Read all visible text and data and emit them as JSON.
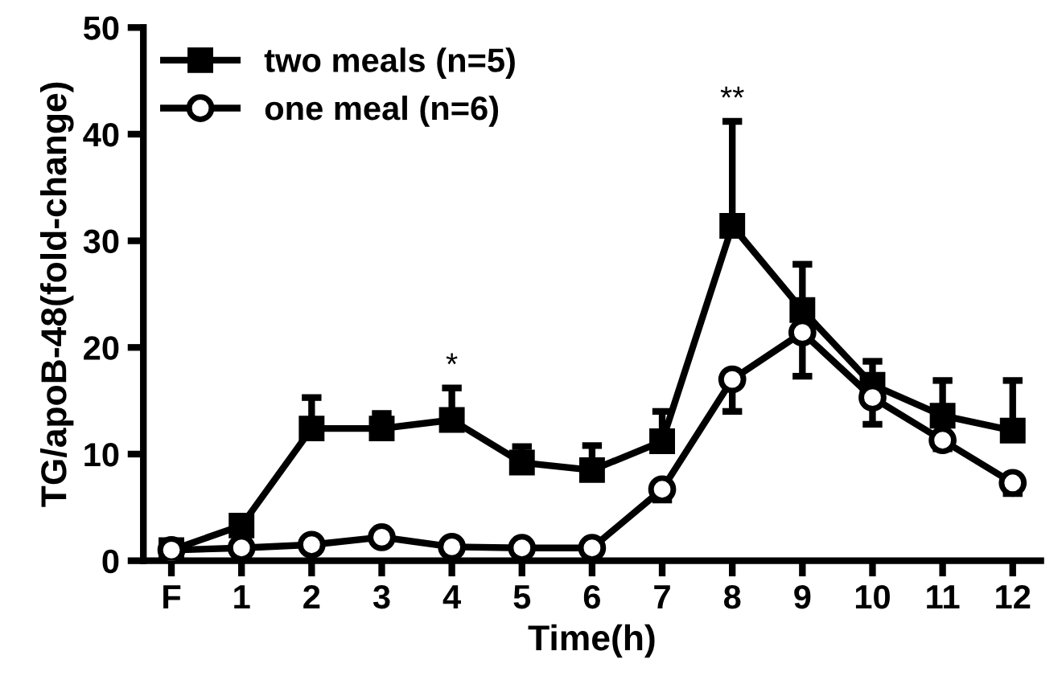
{
  "chart_data": {
    "type": "line",
    "xlabel": "Time(h)",
    "ylabel": "TG/apoB-48(fold-change)",
    "categories": [
      "F",
      "1",
      "2",
      "3",
      "4",
      "5",
      "6",
      "7",
      "8",
      "9",
      "10",
      "11",
      "12"
    ],
    "series": [
      {
        "name": "two meals (n=5)",
        "color": "#000000",
        "marker": "square",
        "values": [
          1.0,
          3.3,
          12.4,
          12.4,
          13.2,
          9.2,
          8.5,
          11.2,
          31.4,
          23.5,
          16.5,
          13.6,
          12.2
        ],
        "errors": [
          null,
          null,
          [
            12.4,
            15.3
          ],
          [
            12.4,
            13.8
          ],
          [
            13.2,
            16.2
          ],
          [
            9.2,
            10.7
          ],
          [
            8.5,
            10.8
          ],
          [
            11.2,
            14.0
          ],
          [
            31.4,
            41.2
          ],
          [
            23.5,
            27.8
          ],
          [
            16.5,
            18.7
          ],
          [
            13.6,
            16.9
          ],
          [
            12.2,
            16.9
          ]
        ]
      },
      {
        "name": "one meal (n=6)",
        "color": "#000000",
        "marker": "circle",
        "values": [
          1.0,
          1.2,
          1.5,
          2.2,
          1.3,
          1.2,
          1.2,
          6.7,
          17.0,
          21.4,
          15.3,
          11.3,
          7.3
        ],
        "errors": [
          null,
          null,
          null,
          null,
          null,
          null,
          null,
          [
            5.7,
            6.7
          ],
          [
            14.0,
            17.0
          ],
          [
            17.3,
            21.4
          ],
          [
            12.8,
            15.3
          ],
          [
            10.5,
            11.3
          ],
          [
            6.3,
            7.3
          ]
        ]
      }
    ],
    "ylim": [
      0,
      50
    ],
    "yticks": [
      0,
      10,
      20,
      30,
      40,
      50
    ],
    "grid": false,
    "legend": "top left",
    "line_style": "solid",
    "annotations": [
      {
        "text": "*",
        "x": "4",
        "y": 16.2
      },
      {
        "text": "**",
        "x": "8",
        "y": 41.2
      }
    ]
  }
}
